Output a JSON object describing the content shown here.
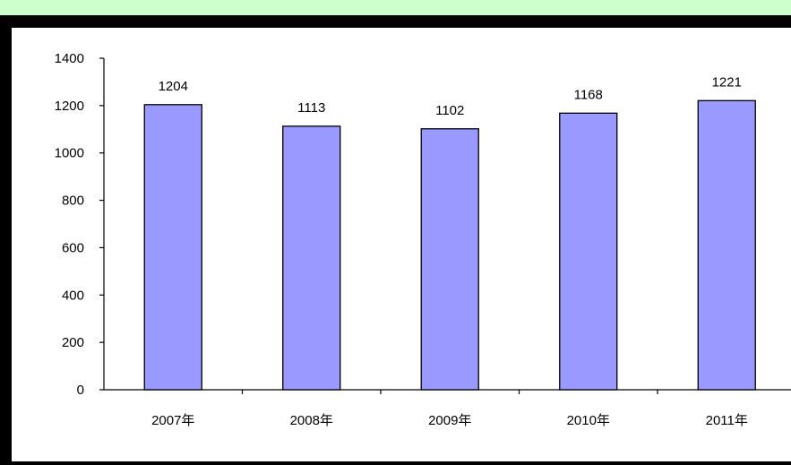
{
  "colors": {
    "page_background": "#ccffcc",
    "frame": "#000000",
    "plot_background": "#ffffff",
    "bar_fill": "#9999ff",
    "bar_stroke": "#000000"
  },
  "chart_data": {
    "type": "bar",
    "title": "",
    "xlabel": "",
    "ylabel": "",
    "categories": [
      "2007年",
      "2008年",
      "2009年",
      "2010年",
      "2011年"
    ],
    "values": [
      1204,
      1113,
      1102,
      1168,
      1221
    ],
    "data_labels": [
      "1204",
      "1113",
      "1102",
      "1168",
      "1221"
    ],
    "ylim": [
      0,
      1400
    ],
    "yticks": [
      0,
      200,
      400,
      600,
      800,
      1000,
      1200,
      1400
    ],
    "ytick_labels": [
      "0",
      "200",
      "400",
      "600",
      "800",
      "1000",
      "1200",
      "1400"
    ],
    "grid": false,
    "legend": "none"
  }
}
